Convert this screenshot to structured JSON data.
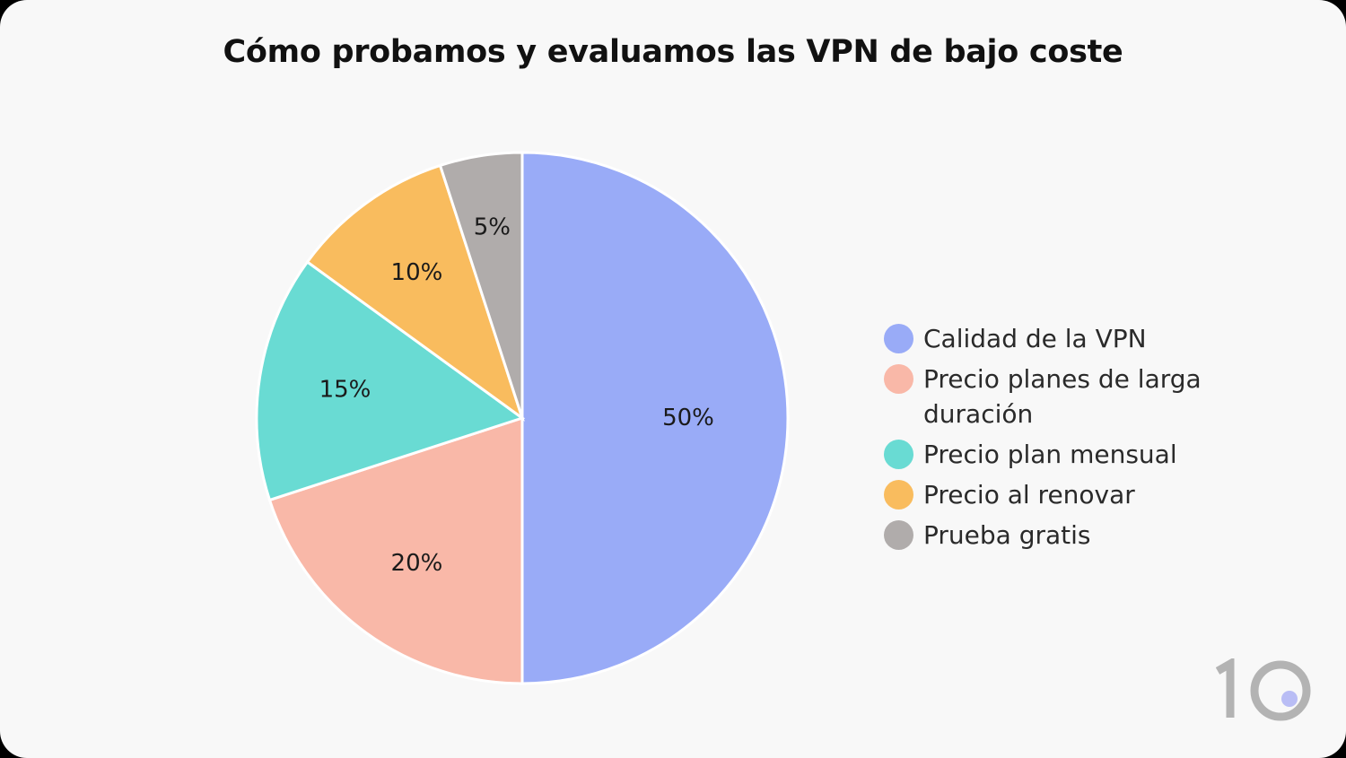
{
  "chart_data": {
    "type": "pie",
    "title": "Cómo probamos y evaluamos las VPN de bajo coste",
    "categories": [
      "Calidad de la VPN",
      "Precio planes de larga duración",
      "Precio plan mensual",
      "Precio al renovar",
      "Prueba gratis"
    ],
    "values": [
      50,
      20,
      15,
      10,
      5
    ],
    "labels": [
      "50%",
      "20%",
      "15%",
      "10%",
      "5%"
    ],
    "colors": [
      "#99abf7",
      "#f9b8a8",
      "#69dbd3",
      "#f9bc5e",
      "#b0acab"
    ],
    "legend_position": "right"
  },
  "logo": {
    "text": "10",
    "dot_color": "#b9bdf5",
    "color": "#b3b3b3"
  }
}
